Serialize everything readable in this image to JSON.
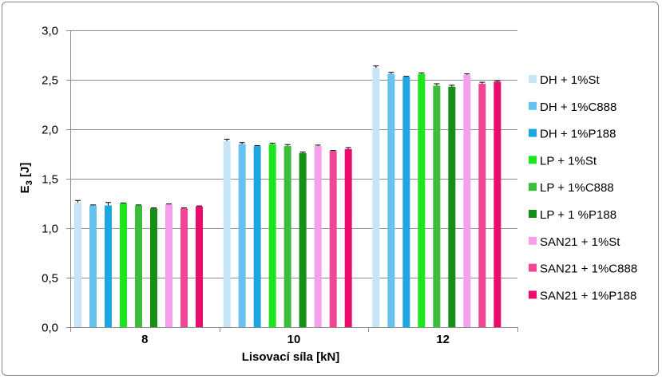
{
  "chart_data": {
    "type": "bar",
    "title": "",
    "xlabel": "Lisovací síla [kN]",
    "ylabel_main": "E",
    "ylabel_sub": "3",
    "ylabel_unit": " [J]",
    "ylim": [
      0,
      3.0
    ],
    "ytick_labels": [
      "0,0",
      "0,5",
      "1,0",
      "1,5",
      "2,0",
      "2,5",
      "3,0"
    ],
    "grid": true,
    "legend_position": "right",
    "categories": [
      "8",
      "10",
      "12"
    ],
    "series": [
      {
        "name": "DH + 1%St",
        "color": "#c6e5f7",
        "values": [
          1.26,
          1.88,
          2.62
        ],
        "errors": [
          0.02,
          0.02,
          0.02
        ]
      },
      {
        "name": "DH + 1%C888",
        "color": "#66c1ee",
        "values": [
          1.23,
          1.85,
          2.56
        ],
        "errors": [
          0.005,
          0.015,
          0.015
        ]
      },
      {
        "name": "DH + 1%P188",
        "color": "#1ea6e2",
        "values": [
          1.23,
          1.83,
          2.53
        ],
        "errors": [
          0.03,
          0.005,
          0.005
        ]
      },
      {
        "name": "LP + 1%St",
        "color": "#1ee61e",
        "values": [
          1.25,
          1.85,
          2.56
        ],
        "errors": [
          0.005,
          0.01,
          0.01
        ]
      },
      {
        "name": "LP + 1%C888",
        "color": "#3cbd3c",
        "values": [
          1.23,
          1.83,
          2.44
        ],
        "errors": [
          0.005,
          0.015,
          0.02
        ]
      },
      {
        "name": "LP + 1 %P188",
        "color": "#168f16",
        "values": [
          1.2,
          1.76,
          2.43
        ],
        "errors": [
          0.005,
          0.01,
          0.015
        ]
      },
      {
        "name": "SAN21 + 1%St",
        "color": "#f6a0ec",
        "values": [
          1.24,
          1.83,
          2.55
        ],
        "errors": [
          0.005,
          0.01,
          0.01
        ]
      },
      {
        "name": "SAN21 + 1%C888",
        "color": "#f04696",
        "values": [
          1.2,
          1.78,
          2.46
        ],
        "errors": [
          0.005,
          0.005,
          0.015
        ]
      },
      {
        "name": "SAN21 + 1%P188",
        "color": "#ea0c6c",
        "values": [
          1.22,
          1.8,
          2.48
        ],
        "errors": [
          0.005,
          0.015,
          0.01
        ]
      }
    ]
  }
}
